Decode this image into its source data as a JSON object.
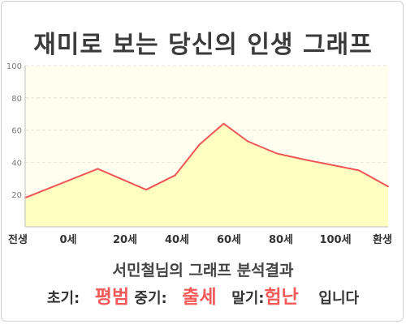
{
  "title": "재미로 보는 당신의 인생 그래프",
  "summary": {
    "line": "서민철님의 그래프 분석결과",
    "early_label": "초기:",
    "early_value": "평범",
    "middle_label": "중기:",
    "middle_value": "출세",
    "late_label": "말기:",
    "late_value": "험난",
    "ending": "입니다"
  },
  "colors": {
    "line": "#f05656",
    "fill": "#ffffc2",
    "plot_bg": "#fffff0",
    "grid": "#e4e4d4",
    "tick": "#7a7a7a",
    "accent_text": "#f25a5a"
  },
  "chart_data": {
    "type": "area",
    "title": "재미로 보는 당신의 인생 그래프",
    "xlabel": "",
    "ylabel": "",
    "ylim": [
      0,
      100
    ],
    "y_ticks": [
      20,
      40,
      60,
      80,
      100
    ],
    "x_tick_labels": [
      "전생",
      "0세",
      "20세",
      "40세",
      "60세",
      "80세",
      "100세",
      "환생"
    ],
    "grid": true,
    "x": [
      -30,
      0,
      20,
      32,
      42,
      52,
      62,
      74,
      86,
      98,
      108,
      120
    ],
    "y": [
      18,
      36,
      23,
      32,
      51,
      64,
      53,
      45.5,
      41.5,
      38,
      35,
      25
    ],
    "series": [
      {
        "values": [
          18,
          36,
          23,
          32,
          51,
          64,
          53,
          45.5,
          41.5,
          38,
          35,
          25
        ]
      }
    ]
  }
}
